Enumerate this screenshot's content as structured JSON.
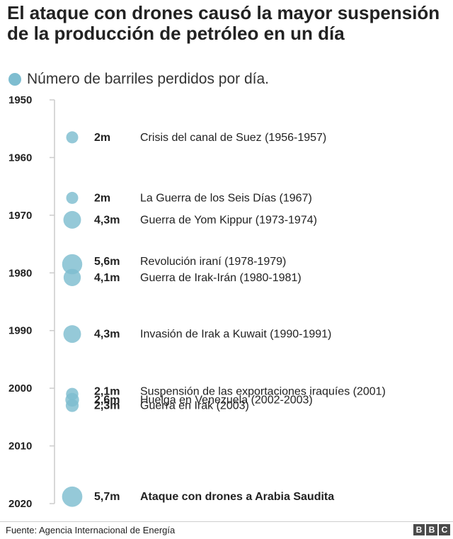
{
  "title": "El ataque con drones causó la mayor suspensión de la producción de petróleo en un día",
  "legend": {
    "label": "Número de barriles perdidos por día."
  },
  "source": "Fuente: Agencia Internacional de Energía",
  "logo": [
    "B",
    "B",
    "C"
  ],
  "colors": {
    "bubble": "#7ebdd0",
    "axis": "#cccccc",
    "text": "#222222"
  },
  "chart_data": {
    "type": "scatter",
    "title": "El ataque con drones causó la mayor suspensión de la producción de petróleo en un día",
    "xlabel": "",
    "ylabel": "",
    "ylim": [
      1950,
      2020
    ],
    "yticks": [
      1950,
      1960,
      1970,
      1980,
      1990,
      2000,
      2010,
      2020
    ],
    "grid": false,
    "series": [
      {
        "name": "Número de barriles perdidos por día.",
        "points": [
          {
            "year": 1956.5,
            "value": 2.0,
            "value_label": "2m",
            "event": "Crisis del canal de Suez (1956-1957)",
            "bold": false
          },
          {
            "year": 1967.0,
            "value": 2.0,
            "value_label": "2m",
            "event": "La Guerra de los Seis Días (1967)",
            "bold": false
          },
          {
            "year": 1970.8,
            "value": 4.3,
            "value_label": "4,3m",
            "event": "Guerra de Yom Kippur (1973-1974)",
            "bold": false
          },
          {
            "year": 1978.5,
            "value": 5.6,
            "value_label": "5,6m",
            "event": "Revolución iraní (1978-1979)",
            "bold": false
          },
          {
            "year": 1980.8,
            "value": 4.1,
            "value_label": "4,1m",
            "event": "Guerra de Irak-Irán (1980-1981)",
            "bold": false
          },
          {
            "year": 1990.6,
            "value": 4.3,
            "value_label": "4,3m",
            "event": "Invasión de Irak a Kuwait (1990-1991)",
            "bold": false
          },
          {
            "year": 2001.0,
            "value": 2.1,
            "value_label": "2,1m",
            "event": "Suspensión de las exportaciones iraquíes (2001)",
            "bold": false
          },
          {
            "year": 2002.0,
            "value": 2.6,
            "value_label": "2,6m",
            "event": "Huelga en Venezuela (2002-2003)",
            "bold": false
          },
          {
            "year": 2003.0,
            "value": 2.3,
            "value_label": "2,3m",
            "event": "Guerra en Irak (2003)",
            "bold": false
          },
          {
            "year": 2018.8,
            "value": 5.7,
            "value_label": "5,7m",
            "event": "Ataque con drones a Arabia Saudita",
            "bold": true
          }
        ]
      }
    ]
  }
}
